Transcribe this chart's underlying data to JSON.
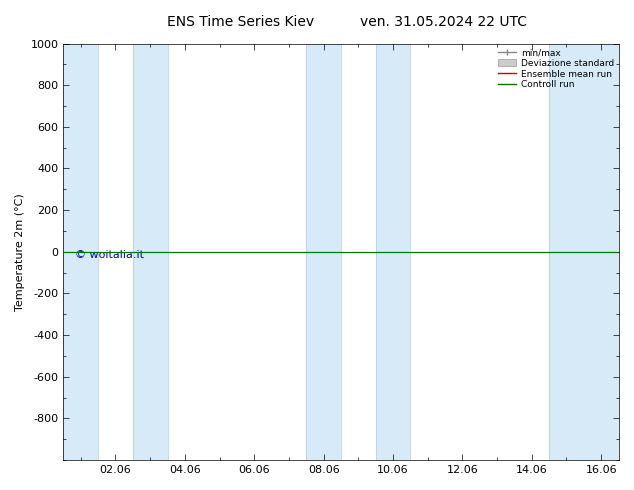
{
  "title": "ENS Time Series Kiev",
  "title2": "ven. 31.05.2024 22 UTC",
  "ylabel": "Temperature 2m (°C)",
  "ylim_top": -1000,
  "ylim_bottom": 1000,
  "yticks": [
    -800,
    -600,
    -400,
    -200,
    0,
    200,
    400,
    600,
    800,
    1000
  ],
  "xlim": [
    0.5,
    16.5
  ],
  "xtick_labels": [
    "02.06",
    "04.06",
    "06.06",
    "08.06",
    "10.06",
    "12.06",
    "14.06",
    "16.06"
  ],
  "xtick_positions": [
    2,
    4,
    6,
    8,
    10,
    12,
    14,
    16
  ],
  "shaded_bands": [
    [
      0.5,
      1.5
    ],
    [
      2.5,
      3.5
    ],
    [
      7.5,
      8.5
    ],
    [
      9.5,
      10.5
    ],
    [
      14.5,
      16.5
    ]
  ],
  "shaded_color": "#d6eaf8",
  "control_run_y": 0,
  "ensemble_mean_y": 0,
  "background_color": "#ffffff",
  "plot_bg_color": "#ffffff",
  "watermark": "© woitalia.it",
  "watermark_color": "#0000cc",
  "legend_items": [
    "min/max",
    "Deviazione standard",
    "Ensemble mean run",
    "Controll run"
  ],
  "legend_colors": [
    "#888888",
    "#bbbbbb",
    "#cc0000",
    "#007700"
  ],
  "title_fontsize": 10,
  "label_fontsize": 8,
  "tick_fontsize": 8,
  "watermark_fontsize": 8
}
